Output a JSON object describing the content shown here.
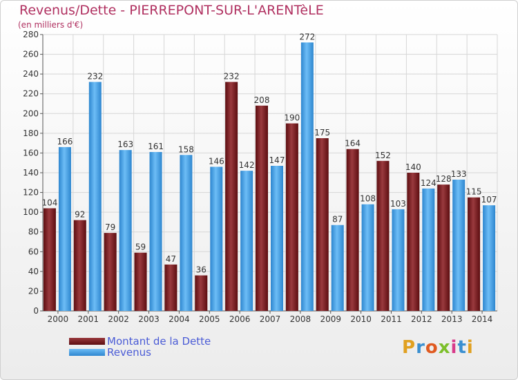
{
  "title": "Revenus/Dette - PIERREPONT-SUR-L'ARENTèLE",
  "subtitle": "(en milliers d'€)",
  "colors": {
    "dette": "#7a1a1e",
    "revenus": "#4aa6ea",
    "title": "#b03060"
  },
  "legend": [
    {
      "label": "Montant de la Dette",
      "color": "#7a1a1e"
    },
    {
      "label": "Revenus",
      "color": "#4aa6ea"
    }
  ],
  "logo": {
    "letters": [
      "P",
      "r",
      "o",
      "x",
      "i",
      "t",
      "i"
    ],
    "colors": [
      "#e0a020",
      "#3a8fd0",
      "#e05a20",
      "#7cbf2a",
      "#d83a8a",
      "#3a8fd0",
      "#e0a020"
    ]
  },
  "chart_data": {
    "type": "bar",
    "categories": [
      "2000",
      "2001",
      "2002",
      "2003",
      "2004",
      "2005",
      "2006",
      "2007",
      "2008",
      "2009",
      "2010",
      "2011",
      "2012",
      "2013",
      "2014"
    ],
    "series": [
      {
        "name": "Montant de la Dette",
        "values": [
          104,
          92,
          79,
          59,
          47,
          36,
          232,
          208,
          190,
          175,
          164,
          152,
          140,
          128,
          115
        ]
      },
      {
        "name": "Revenus",
        "values": [
          166,
          232,
          163,
          161,
          158,
          146,
          142,
          147,
          272,
          87,
          108,
          103,
          124,
          133,
          107
        ]
      }
    ],
    "title": "Revenus/Dette - PIERREPONT-SUR-L'ARENTèLE",
    "subtitle": "(en milliers d'€)",
    "xlabel": "",
    "ylabel": "",
    "ylim": [
      0,
      280
    ],
    "yticks": [
      0,
      20,
      40,
      60,
      80,
      100,
      120,
      140,
      160,
      180,
      200,
      220,
      240,
      260,
      280
    ],
    "grid": true,
    "legend_position": "bottom-left"
  }
}
